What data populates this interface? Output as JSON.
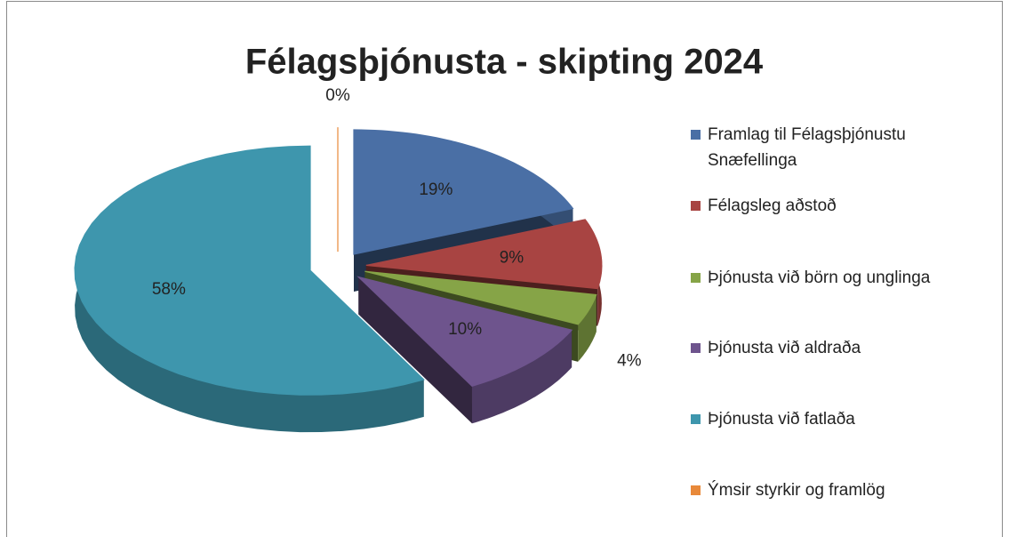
{
  "chart_data": {
    "type": "pie3d",
    "title": "Félagsþjónusta - skipting 2024",
    "categories": [
      "Framlag til Félagsþjónustu Snæfellinga",
      "Félagsleg aðstoð",
      "Þjónusta við börn og unglinga",
      "Þjónusta við aldraða",
      "Þjónusta við fatlaða",
      "Ýmsir styrkir og framlög"
    ],
    "values": [
      19,
      9,
      4,
      10,
      58,
      0
    ],
    "value_labels": [
      "19%",
      "9%",
      "4%",
      "10%",
      "58%",
      "0%"
    ],
    "colors": [
      "#4a6fa5",
      "#a84442",
      "#86a447",
      "#6e548d",
      "#3e96ad",
      "#e8893a"
    ],
    "legend": "right"
  }
}
